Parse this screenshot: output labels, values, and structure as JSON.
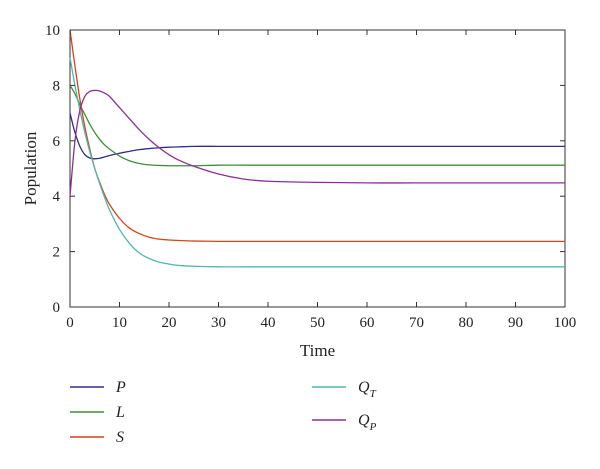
{
  "chart_data": {
    "type": "line",
    "xlabel": "Time",
    "ylabel": "Population",
    "xlim": [
      0,
      100
    ],
    "ylim": [
      0,
      10
    ],
    "x_ticks": [
      0,
      10,
      20,
      30,
      40,
      50,
      60,
      70,
      80,
      90,
      100
    ],
    "y_ticks": [
      0,
      2,
      4,
      6,
      8,
      10
    ],
    "grid": false,
    "legend_position": "bottom",
    "x": [
      0,
      1,
      2,
      3,
      4,
      5,
      6,
      7,
      8,
      10,
      12,
      14,
      16,
      18,
      20,
      22,
      25,
      30,
      35,
      40,
      50,
      60,
      70,
      80,
      90,
      100
    ],
    "series": [
      {
        "name": "P",
        "color": "#2e2e8c",
        "values": [
          7.0,
          6.3,
          5.8,
          5.5,
          5.38,
          5.35,
          5.37,
          5.42,
          5.47,
          5.55,
          5.62,
          5.68,
          5.72,
          5.75,
          5.77,
          5.78,
          5.8,
          5.8,
          5.8,
          5.8,
          5.8,
          5.8,
          5.8,
          5.8,
          5.8,
          5.8
        ]
      },
      {
        "name": "L",
        "color": "#3f8f3a",
        "values": [
          8.0,
          7.7,
          7.3,
          6.95,
          6.6,
          6.3,
          6.05,
          5.85,
          5.7,
          5.45,
          5.28,
          5.18,
          5.13,
          5.11,
          5.1,
          5.1,
          5.1,
          5.12,
          5.12,
          5.12,
          5.12,
          5.12,
          5.12,
          5.12,
          5.12,
          5.12
        ]
      },
      {
        "name": "S",
        "color": "#d2451c",
        "values": [
          10.0,
          8.7,
          7.5,
          6.5,
          5.7,
          5.0,
          4.5,
          4.05,
          3.7,
          3.2,
          2.85,
          2.65,
          2.52,
          2.45,
          2.42,
          2.4,
          2.38,
          2.37,
          2.37,
          2.37,
          2.37,
          2.37,
          2.37,
          2.37,
          2.37,
          2.37
        ]
      },
      {
        "name": "Q_T",
        "color": "#4fb8b0",
        "values": [
          9.0,
          8.0,
          7.1,
          6.3,
          5.6,
          5.0,
          4.45,
          3.95,
          3.5,
          2.8,
          2.3,
          1.95,
          1.75,
          1.62,
          1.55,
          1.5,
          1.47,
          1.45,
          1.45,
          1.45,
          1.45,
          1.45,
          1.45,
          1.45,
          1.45,
          1.45
        ]
      },
      {
        "name": "Q_P",
        "color": "#8e2e96",
        "values": [
          4.0,
          6.0,
          7.1,
          7.6,
          7.78,
          7.82,
          7.8,
          7.72,
          7.6,
          7.2,
          6.8,
          6.4,
          6.05,
          5.75,
          5.5,
          5.3,
          5.08,
          4.8,
          4.62,
          4.54,
          4.5,
          4.48,
          4.48,
          4.48,
          4.48,
          4.48
        ]
      }
    ],
    "legend": [
      {
        "series": 0,
        "main": "P",
        "sub": ""
      },
      {
        "series": 1,
        "main": "L",
        "sub": ""
      },
      {
        "series": 2,
        "main": "S",
        "sub": ""
      },
      {
        "series": 3,
        "main": "Q",
        "sub": "T"
      },
      {
        "series": 4,
        "main": "Q",
        "sub": "P"
      }
    ]
  }
}
